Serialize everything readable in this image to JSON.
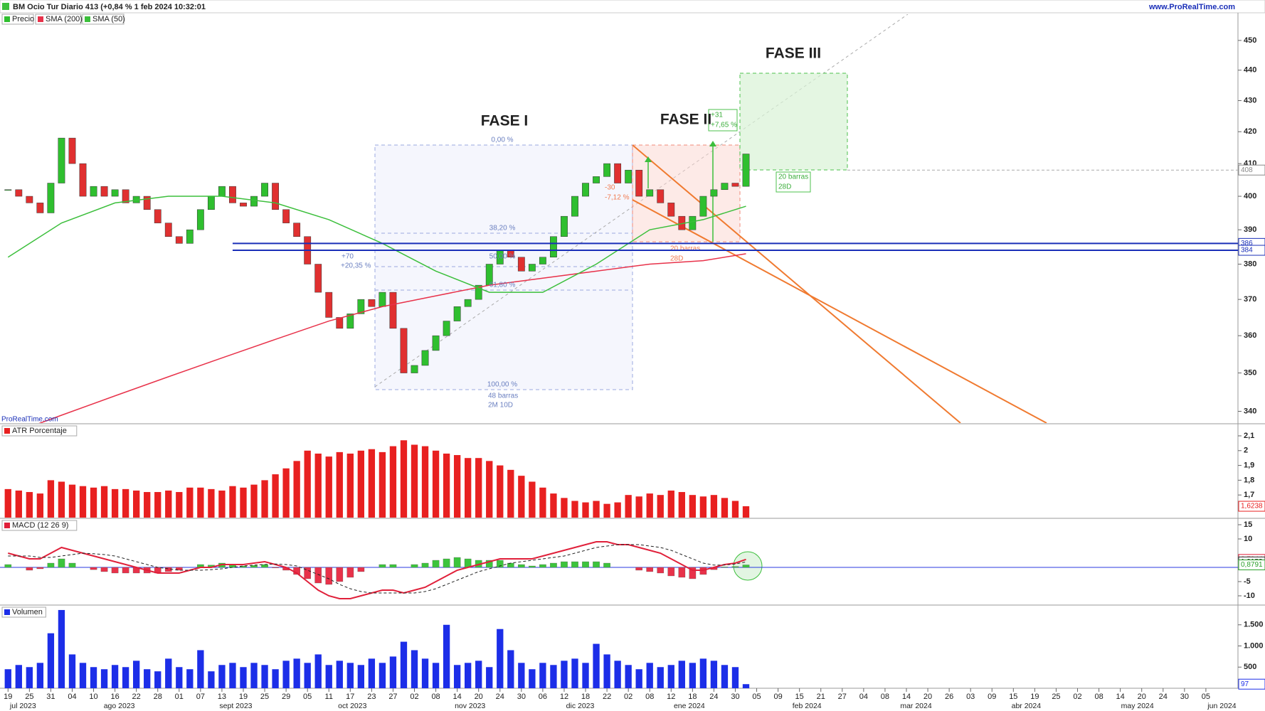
{
  "header": {
    "title": "BM Ocio Tur Diario 413 (+0,84 % 1 feb 2024 10:32:01",
    "site": "www.ProRealTime.com",
    "watermark": "ProRealTime.com"
  },
  "chart_data": [
    {
      "type": "candlestick",
      "name": "Precio",
      "log": true,
      "xlim": [
        -0.75,
        115
      ],
      "ylim": [
        337,
        459
      ],
      "yticks": [
        340,
        350,
        360,
        370,
        380,
        390,
        400,
        410,
        420,
        430,
        440,
        450
      ],
      "close": [
        402,
        400,
        398,
        395,
        404,
        418,
        410,
        400,
        403,
        400,
        402,
        398,
        400,
        396,
        392,
        388,
        386,
        390,
        396,
        400,
        403,
        398,
        397,
        400,
        404,
        396,
        392,
        388,
        380,
        372,
        365,
        362,
        366,
        370,
        368,
        372,
        362,
        350,
        352,
        356,
        360,
        364,
        368,
        370,
        374,
        380,
        384,
        382,
        378,
        380,
        382,
        388,
        394,
        400,
        404,
        406,
        410,
        404,
        408,
        400,
        402,
        398,
        394,
        390,
        394,
        400,
        402,
        404,
        403,
        413
      ],
      "series": [
        {
          "name": "SMA (200)",
          "color": "#e8324a",
          "x": [
            0,
            5,
            10,
            15,
            20,
            25,
            30,
            35,
            40,
            45,
            50,
            55,
            60,
            65,
            69
          ],
          "values": [
            334,
            339,
            344,
            349,
            354,
            359,
            364,
            368,
            371,
            374,
            376,
            378,
            380,
            381,
            383
          ]
        },
        {
          "name": "SMA (50)",
          "color": "#3cbf3c",
          "x": [
            0,
            5,
            10,
            15,
            20,
            25,
            30,
            35,
            40,
            45,
            50,
            55,
            60,
            65,
            69
          ],
          "values": [
            382,
            392,
            398,
            400,
            400,
            398,
            393,
            386,
            378,
            372,
            372,
            380,
            390,
            393,
            397
          ]
        }
      ],
      "levels": [
        386,
        384
      ],
      "hline": 408,
      "annotations": [
        "FASE I",
        "FASE II",
        "FASE III",
        "0,00 %",
        "38,20 %",
        "50,00 %",
        "61,80 %",
        "100,00 %",
        "48 barras",
        "2M 10D",
        "+70",
        "+20,35 %",
        "-30",
        "-7,12 %",
        "20 barras",
        "28D",
        "+31",
        "+7,65 %",
        "20 barras",
        "28D"
      ]
    },
    {
      "type": "bar",
      "title": "ATR Porcentaje",
      "color": "#e82020",
      "ylim": [
        1.547,
        2.177
      ],
      "yticks": [
        {
          "value": 1.7,
          "label": "1,7"
        },
        {
          "value": 1.8,
          "label": "1,8"
        },
        {
          "value": 1.9,
          "label": "1,9"
        },
        2,
        {
          "value": 2.1,
          "label": "2,1"
        }
      ],
      "values": [
        1.74,
        1.73,
        1.72,
        1.71,
        1.8,
        1.79,
        1.77,
        1.76,
        1.75,
        1.76,
        1.74,
        1.74,
        1.73,
        1.72,
        1.72,
        1.73,
        1.72,
        1.75,
        1.75,
        1.74,
        1.73,
        1.76,
        1.75,
        1.77,
        1.8,
        1.84,
        1.88,
        1.93,
        2.0,
        1.98,
        1.96,
        1.99,
        1.98,
        2.0,
        2.01,
        1.99,
        2.03,
        2.07,
        2.04,
        2.03,
        2.0,
        1.98,
        1.97,
        1.95,
        1.95,
        1.93,
        1.9,
        1.87,
        1.83,
        1.79,
        1.75,
        1.71,
        1.68,
        1.66,
        1.65,
        1.66,
        1.64,
        1.65,
        1.7,
        1.69,
        1.71,
        1.7,
        1.73,
        1.72,
        1.7,
        1.69,
        1.7,
        1.68,
        1.66,
        1.6238
      ],
      "last_label": "1,6238"
    },
    {
      "type": "macd",
      "title": "MACD (12 26 9)",
      "ylim": [
        -13,
        17
      ],
      "yticks": [
        15,
        10,
        -5,
        -10
      ],
      "series": [
        {
          "color": "#e0203a",
          "values": [
            5,
            4,
            3,
            3,
            5,
            7,
            6,
            5,
            4,
            3,
            2,
            1,
            0,
            -1,
            -2,
            -2,
            -2,
            -1,
            0,
            0,
            1,
            1,
            1,
            1.5,
            2,
            1,
            0,
            -2,
            -5,
            -8,
            -10,
            -11,
            -11,
            -10,
            -9,
            -8,
            -8,
            -9,
            -8,
            -7,
            -5,
            -3,
            -1,
            0,
            1,
            2,
            3,
            3,
            3,
            3,
            4,
            5,
            6,
            7,
            8,
            9,
            9,
            8,
            8,
            7,
            6,
            5,
            3,
            1,
            -1,
            -1,
            0,
            1,
            1.5,
            2.7944
          ],
          "last_label": "2,7944"
        },
        {
          "color": "#222222",
          "dash": true,
          "values": [
            4,
            4,
            4,
            3.5,
            3.5,
            4,
            4.5,
            5,
            4.8,
            4.5,
            4,
            3,
            2,
            1,
            0,
            -0.5,
            -1,
            -1,
            -1,
            -0.8,
            -0.5,
            0,
            0.5,
            0.8,
            1,
            1.2,
            1,
            0.5,
            -1,
            -2.5,
            -4,
            -6,
            -7.5,
            -8.5,
            -9,
            -9,
            -9,
            -9,
            -9,
            -8.5,
            -7.5,
            -6,
            -4.5,
            -3,
            -1.5,
            -0.5,
            0.5,
            1.5,
            2,
            2.5,
            3,
            3.5,
            4,
            5,
            6,
            7,
            7.5,
            8,
            8,
            8,
            7.5,
            7,
            6,
            4.5,
            3,
            1.5,
            0.8,
            0.8,
            1.2,
            1.9153
          ],
          "last_label": "1,9153"
        }
      ],
      "histogram": {
        "up": "#3cc43c",
        "down": "#e8324a",
        "values": [
          1,
          0,
          -1,
          -0.5,
          1.5,
          3,
          1.5,
          0,
          -0.8,
          -1.5,
          -2,
          -2,
          -2,
          -2,
          -2,
          -1.5,
          -1,
          0,
          1,
          0.8,
          1.5,
          1,
          0.5,
          0.7,
          1,
          -0.2,
          -1,
          -2.5,
          -4,
          -5.5,
          -6,
          -5,
          -3.5,
          -1.5,
          0,
          1,
          1,
          0,
          1,
          1.5,
          2.5,
          3,
          3.5,
          3,
          2.5,
          2.5,
          2.5,
          1.5,
          1,
          0.5,
          1,
          1.5,
          2,
          2,
          2,
          2,
          1.5,
          0,
          0,
          -1,
          -1.5,
          -2,
          -3,
          -3.5,
          -4,
          -2.5,
          -0.8,
          0.2,
          0.3,
          0.8791
        ],
        "last_label": "0,8791"
      }
    },
    {
      "type": "bar",
      "title": "Volumen",
      "color": "#1c2ee8",
      "ylim": [
        0,
        1950
      ],
      "yticks": [
        500,
        {
          "value": 1000,
          "label": "1.000"
        },
        {
          "value": 1500,
          "label": "1.500"
        }
      ],
      "values": [
        450,
        550,
        500,
        600,
        1300,
        1850,
        800,
        600,
        500,
        450,
        550,
        500,
        650,
        450,
        400,
        700,
        500,
        450,
        900,
        400,
        550,
        600,
        500,
        600,
        550,
        450,
        650,
        700,
        600,
        800,
        550,
        650,
        600,
        550,
        700,
        600,
        750,
        1100,
        900,
        700,
        600,
        1500,
        550,
        600,
        650,
        500,
        1400,
        900,
        600,
        450,
        600,
        550,
        650,
        700,
        600,
        1050,
        800,
        650,
        550,
        450,
        600,
        500,
        550,
        650,
        600,
        700,
        650,
        550,
        500,
        97
      ],
      "xticks": [
        {
          "value": 0,
          "label": "19"
        },
        {
          "value": 2,
          "label": "25"
        },
        {
          "value": 4,
          "label": "31"
        },
        {
          "value": 6,
          "label": "04"
        },
        {
          "value": 8,
          "label": "10"
        },
        {
          "value": 10,
          "label": "16"
        },
        {
          "value": 12,
          "label": "22"
        },
        {
          "value": 14,
          "label": "28"
        },
        {
          "value": 16,
          "label": "01"
        },
        {
          "value": 18,
          "label": "07"
        },
        {
          "value": 20,
          "label": "13"
        },
        {
          "value": 22,
          "label": "19"
        },
        {
          "value": 24,
          "label": "25"
        },
        {
          "value": 26,
          "label": "29"
        },
        {
          "value": 28,
          "label": "05"
        },
        {
          "value": 30,
          "label": "11"
        },
        {
          "value": 32,
          "label": "17"
        },
        {
          "value": 34,
          "label": "23"
        },
        {
          "value": 36,
          "label": "27"
        },
        {
          "value": 38,
          "label": "02"
        },
        {
          "value": 40,
          "label": "08"
        },
        {
          "value": 42,
          "label": "14"
        },
        {
          "value": 44,
          "label": "20"
        },
        {
          "value": 46,
          "label": "24"
        },
        {
          "value": 48,
          "label": "30"
        },
        {
          "value": 50,
          "label": "06"
        },
        {
          "value": 52,
          "label": "12"
        },
        {
          "value": 54,
          "label": "18"
        },
        {
          "value": 56,
          "label": "22"
        },
        {
          "value": 58,
          "label": "02"
        },
        {
          "value": 60,
          "label": "08"
        },
        {
          "value": 62,
          "label": "12"
        },
        {
          "value": 64,
          "label": "18"
        },
        {
          "value": 66,
          "label": "24"
        },
        {
          "value": 68,
          "label": "30"
        },
        {
          "value": 70,
          "label": "05"
        },
        {
          "value": 72,
          "label": "09"
        },
        {
          "value": 74,
          "label": "15"
        },
        {
          "value": 76,
          "label": "21"
        },
        {
          "value": 78,
          "label": "27"
        },
        {
          "value": 80,
          "label": "04"
        },
        {
          "value": 82,
          "label": "08"
        },
        {
          "value": 84,
          "label": "14"
        },
        {
          "value": 86,
          "label": "20"
        },
        {
          "value": 88,
          "label": "26"
        },
        {
          "value": 90,
          "label": "03"
        },
        {
          "value": 92,
          "label": "09"
        },
        {
          "value": 94,
          "label": "15"
        },
        {
          "value": 96,
          "label": "19"
        },
        {
          "value": 98,
          "label": "25"
        },
        {
          "value": 100,
          "label": "02"
        },
        {
          "value": 102,
          "label": "08"
        },
        {
          "value": 104,
          "label": "14"
        },
        {
          "value": 106,
          "label": "20"
        },
        {
          "value": 108,
          "label": "24"
        },
        {
          "value": 110,
          "label": "30"
        },
        {
          "value": 112,
          "label": "05"
        }
      ],
      "months": [
        {
          "value": 1.4,
          "label": "jul 2023"
        },
        {
          "value": 10.4,
          "label": "ago 2023"
        },
        {
          "value": 21.3,
          "label": "sept 2023"
        },
        {
          "value": 32.2,
          "label": "oct 2023"
        },
        {
          "value": 43.2,
          "label": "nov 2023"
        },
        {
          "value": 53.5,
          "label": "dic 2023"
        },
        {
          "value": 63.7,
          "label": "ene 2024"
        },
        {
          "value": 74.7,
          "label": "feb 2024"
        },
        {
          "value": 84.9,
          "label": "mar 2024"
        },
        {
          "value": 95.2,
          "label": "abr 2024"
        },
        {
          "value": 105.6,
          "label": "may 2024"
        },
        {
          "value": 113.5,
          "label": "jun 2024"
        }
      ]
    }
  ]
}
